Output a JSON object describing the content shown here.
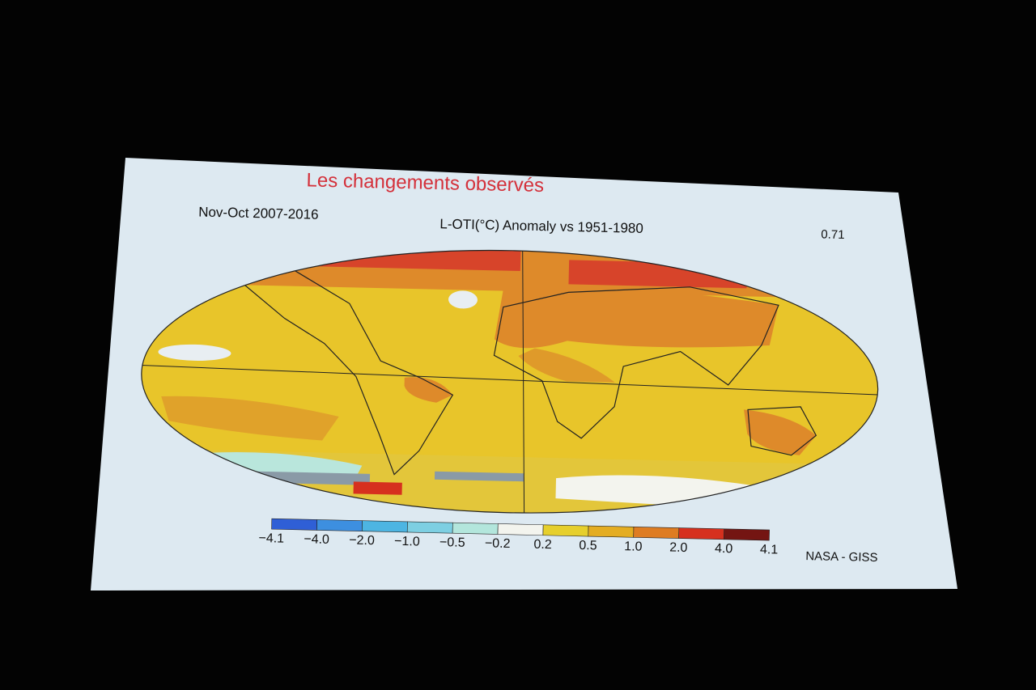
{
  "slide": {
    "title": "Les changements observés",
    "period": "Nov-Oct 2007-2016",
    "map_title": "L-OTI(°C) Anomaly vs 1951-1980",
    "global_mean": "0.71",
    "source": "NASA - GISS"
  },
  "legend": {
    "labels": [
      "−4.1",
      "−4.0",
      "−2.0",
      "−1.0",
      "−0.5",
      "−0.2",
      "0.2",
      "0.5",
      "1.0",
      "2.0",
      "4.0",
      "4.1"
    ],
    "colors": [
      "#2f5fd6",
      "#3d8fe0",
      "#4db5e2",
      "#7dcfe2",
      "#b3e6dc",
      "#f3f4ee",
      "#e6cf2c",
      "#e4ad22",
      "#de7c22",
      "#d6301e",
      "#741512"
    ]
  }
}
